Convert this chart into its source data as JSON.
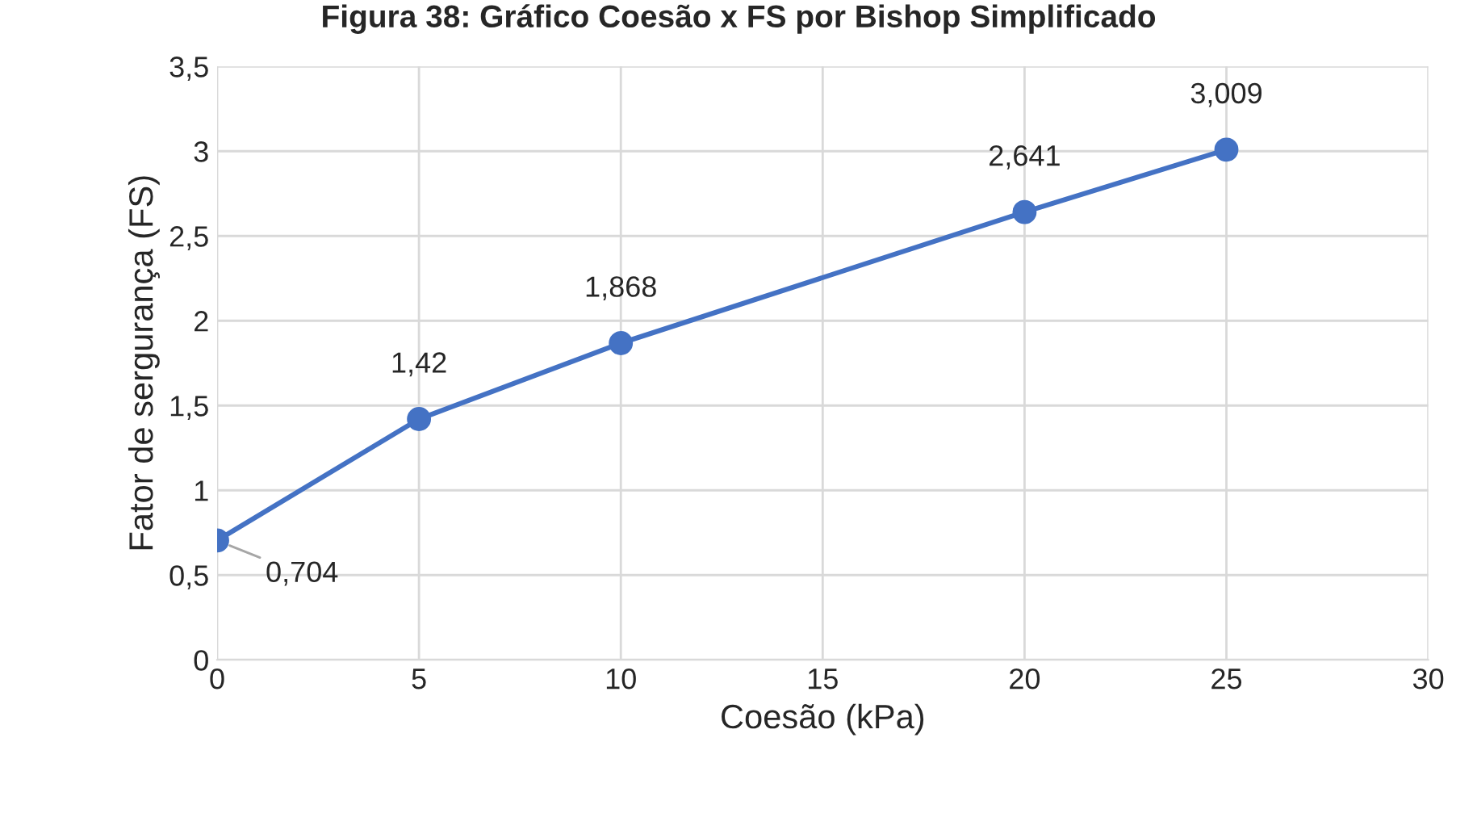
{
  "chart_data": {
    "type": "line",
    "title": "Figura 38: Gráfico Coesão x FS por Bishop Simplificado",
    "xlabel": "Coesão (kPa)",
    "ylabel": "Fator de sergurança (FS)",
    "x": [
      0,
      5,
      10,
      20,
      25
    ],
    "series": [
      {
        "color": "#4472c4",
        "values": [
          0.704,
          1.42,
          1.868,
          2.641,
          3.009
        ],
        "value_labels": [
          "0,704",
          "1,42",
          "1,868",
          "2,641",
          "3,009"
        ]
      }
    ],
    "xlim": [
      0,
      30
    ],
    "xticks": [
      {
        "value": 0,
        "label": "0"
      },
      {
        "value": 5,
        "label": "5"
      },
      {
        "value": 10,
        "label": "10"
      },
      {
        "value": 15,
        "label": "15"
      },
      {
        "value": 20,
        "label": "20"
      },
      {
        "value": 25,
        "label": "25"
      },
      {
        "value": 30,
        "label": "30"
      }
    ],
    "ylim": [
      0,
      3.5
    ],
    "yticks": [
      {
        "value": 0,
        "label": "0"
      },
      {
        "value": 0.5,
        "label": "0,5"
      },
      {
        "value": 1,
        "label": "1"
      },
      {
        "value": 1.5,
        "label": "1,5"
      },
      {
        "value": 2,
        "label": "2"
      },
      {
        "value": 2.5,
        "label": "2,5"
      },
      {
        "value": 3,
        "label": "3"
      },
      {
        "value": 3.5,
        "label": "3,5"
      }
    ],
    "grid": true,
    "marker": "circle",
    "line_style": "solid",
    "legend": false
  }
}
